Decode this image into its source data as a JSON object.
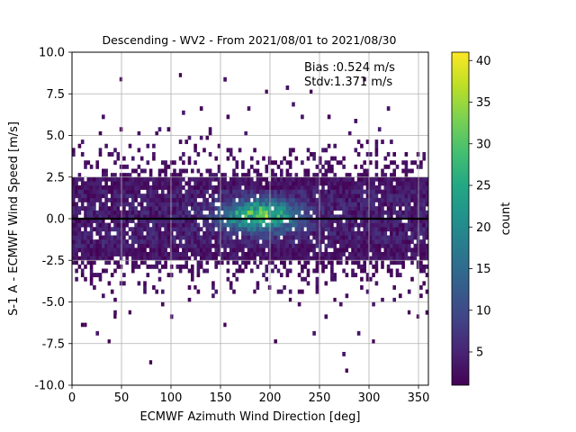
{
  "chart_data": {
    "type": "heatmap",
    "title": "Descending - WV2 - From 2021/08/01 to 2021/08/30",
    "xlabel": "ECMWF Azimuth Wind Direction [deg]",
    "ylabel": "S-1 A - ECMWF Wind Speed [m/s]",
    "xlim": [
      0,
      360
    ],
    "ylim": [
      -10,
      10
    ],
    "xticks": [
      "0",
      "50",
      "100",
      "150",
      "200",
      "250",
      "300",
      "350"
    ],
    "yticks": [
      "10.0",
      "7.5",
      "5.0",
      "2.5",
      "0.0",
      "-2.5",
      "-5.0",
      "-7.5",
      "-10.0"
    ],
    "x_tick_values": [
      0,
      50,
      100,
      150,
      200,
      250,
      300,
      350
    ],
    "y_tick_values": [
      10,
      7.5,
      5,
      2.5,
      0,
      -2.5,
      -5,
      -7.5,
      -10
    ],
    "grid": true,
    "reference_line_y": 0,
    "bin_size": {
      "x": 3,
      "y": 0.25
    },
    "density": {
      "peak_x": 190,
      "peak_y": 0.2,
      "peak_count": 41,
      "core_y_range": [
        -2.5,
        2.5
      ],
      "sparse_points": [
        [
          110,
          8.6
        ],
        [
          48,
          8.4
        ],
        [
          295,
          8.4
        ],
        [
          196,
          7.5
        ],
        [
          242,
          7.5
        ],
        [
          80,
          -8.6
        ],
        [
          38,
          -7.5
        ],
        [
          305,
          -7.5
        ],
        [
          278,
          -9.1
        ],
        [
          10,
          -6.4
        ],
        [
          14,
          -6.4
        ],
        [
          42,
          -5.9
        ],
        [
          57,
          -5.6
        ],
        [
          155,
          -6.4
        ],
        [
          350,
          -5.8
        ],
        [
          340,
          -5.6
        ],
        [
          185,
          -4.3
        ],
        [
          123,
          -4.1
        ],
        [
          265,
          -5.0
        ],
        [
          220,
          -4.8
        ]
      ]
    },
    "colorbar": {
      "label": "count",
      "colormap": "viridis",
      "range": [
        1,
        41
      ],
      "ticks": [
        "5",
        "10",
        "15",
        "20",
        "25",
        "30",
        "35",
        "40"
      ],
      "tick_values": [
        5,
        10,
        15,
        20,
        25,
        30,
        35,
        40
      ]
    },
    "annotations": [
      "Bias :0.524 m/s",
      "Stdv:1.371 m/s"
    ]
  }
}
